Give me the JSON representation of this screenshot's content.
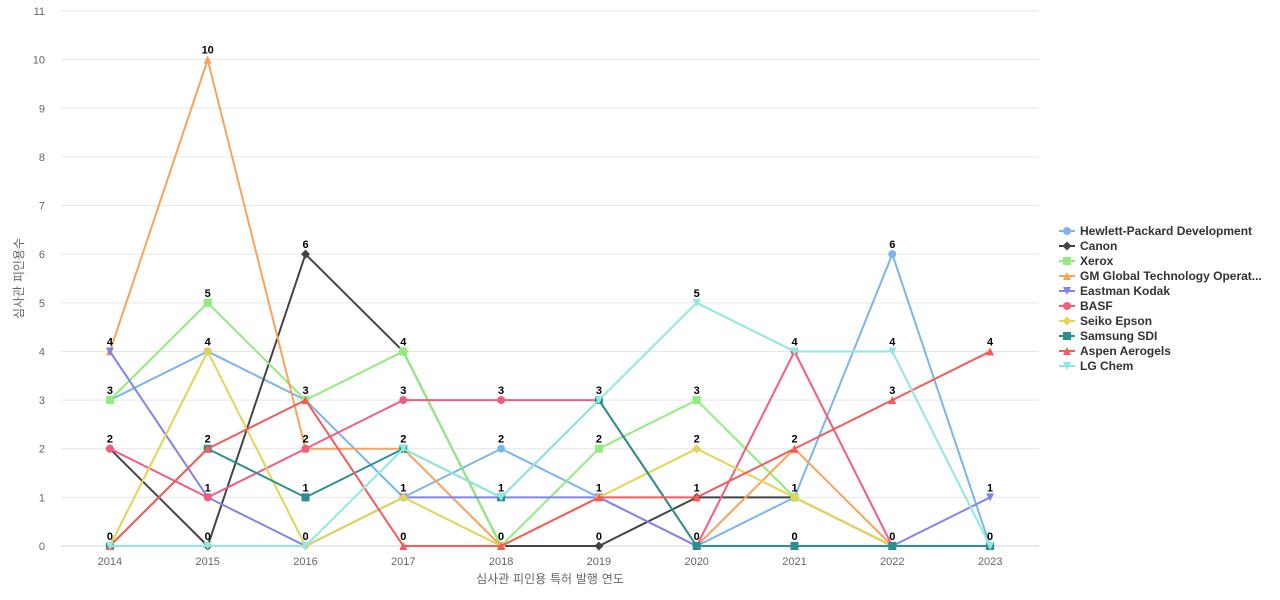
{
  "chart_data": {
    "type": "line",
    "xlabel": "심사관 피인용 특허 발행 연도",
    "ylabel": "심사관 피인용수",
    "x": [
      "2014",
      "2015",
      "2016",
      "2017",
      "2018",
      "2019",
      "2020",
      "2021",
      "2022",
      "2023"
    ],
    "ylim": [
      0,
      11
    ],
    "yticks": [
      "0",
      "1",
      "2",
      "3",
      "4",
      "5",
      "6",
      "7",
      "8",
      "9",
      "10",
      "11"
    ],
    "grid": true,
    "legend_position": "right",
    "series": [
      {
        "name": "Hewlett-Packard Development",
        "color": "#7cb5ec",
        "marker": "circle",
        "values": [
          3,
          4,
          3,
          1,
          2,
          1,
          0,
          1,
          6,
          0
        ]
      },
      {
        "name": "Canon",
        "color": "#434348",
        "marker": "diamond",
        "values": [
          2,
          0,
          6,
          4,
          0,
          0,
          1,
          1,
          0,
          0
        ]
      },
      {
        "name": "Xerox",
        "color": "#90ed7d",
        "marker": "square",
        "values": [
          3,
          5,
          3,
          4,
          0,
          2,
          3,
          1,
          0,
          0
        ]
      },
      {
        "name": "GM Global Technology Operat...",
        "color": "#f7a35c",
        "marker": "triangle",
        "values": [
          4,
          10,
          2,
          2,
          0,
          1,
          0,
          2,
          0,
          0
        ]
      },
      {
        "name": "Eastman Kodak",
        "color": "#8085e9",
        "marker": "triangle-down",
        "values": [
          4,
          1,
          0,
          1,
          1,
          1,
          0,
          0,
          0,
          1
        ]
      },
      {
        "name": "BASF",
        "color": "#f15c80",
        "marker": "circle",
        "values": [
          2,
          1,
          2,
          3,
          3,
          3,
          0,
          4,
          0,
          0
        ]
      },
      {
        "name": "Seiko Epson",
        "color": "#e4d354",
        "marker": "diamond",
        "values": [
          0,
          4,
          0,
          1,
          0,
          1,
          2,
          1,
          0,
          0
        ]
      },
      {
        "name": "Samsung SDI",
        "color": "#2b908f",
        "marker": "square",
        "values": [
          0,
          2,
          1,
          2,
          1,
          3,
          0,
          0,
          0,
          0
        ]
      },
      {
        "name": "Aspen Aerogels",
        "color": "#f45b5b",
        "marker": "triangle",
        "values": [
          0,
          2,
          3,
          0,
          0,
          1,
          1,
          2,
          3,
          4
        ]
      },
      {
        "name": "LG Chem",
        "color": "#91e8e1",
        "marker": "triangle-down",
        "values": [
          0,
          0,
          0,
          2,
          1,
          3,
          5,
          4,
          4,
          0
        ]
      }
    ],
    "data_labels": [
      {
        "x": "2014",
        "value": 4
      },
      {
        "x": "2014",
        "value": 3
      },
      {
        "x": "2014",
        "value": 2
      },
      {
        "x": "2014",
        "value": 0
      },
      {
        "x": "2015",
        "value": 10
      },
      {
        "x": "2015",
        "value": 5
      },
      {
        "x": "2015",
        "value": 4
      },
      {
        "x": "2015",
        "value": 2
      },
      {
        "x": "2015",
        "value": 1
      },
      {
        "x": "2015",
        "value": 0
      },
      {
        "x": "2016",
        "value": 6
      },
      {
        "x": "2016",
        "value": 3
      },
      {
        "x": "2016",
        "value": 2
      },
      {
        "x": "2016",
        "value": 1
      },
      {
        "x": "2016",
        "value": 0
      },
      {
        "x": "2017",
        "value": 4
      },
      {
        "x": "2017",
        "value": 3
      },
      {
        "x": "2017",
        "value": 2
      },
      {
        "x": "2017",
        "value": 1
      },
      {
        "x": "2017",
        "value": 0
      },
      {
        "x": "2018",
        "value": 3
      },
      {
        "x": "2018",
        "value": 2
      },
      {
        "x": "2018",
        "value": 1
      },
      {
        "x": "2018",
        "value": 0
      },
      {
        "x": "2019",
        "value": 3
      },
      {
        "x": "2019",
        "value": 2
      },
      {
        "x": "2019",
        "value": 1
      },
      {
        "x": "2019",
        "value": 0
      },
      {
        "x": "2020",
        "value": 5
      },
      {
        "x": "2020",
        "value": 3
      },
      {
        "x": "2020",
        "value": 2
      },
      {
        "x": "2020",
        "value": 1
      },
      {
        "x": "2020",
        "value": 0
      },
      {
        "x": "2021",
        "value": 4
      },
      {
        "x": "2021",
        "value": 2
      },
      {
        "x": "2021",
        "value": 1
      },
      {
        "x": "2021",
        "value": 0
      },
      {
        "x": "2022",
        "value": 6
      },
      {
        "x": "2022",
        "value": 4
      },
      {
        "x": "2022",
        "value": 3
      },
      {
        "x": "2022",
        "value": 0
      },
      {
        "x": "2023",
        "value": 4
      },
      {
        "x": "2023",
        "value": 1
      },
      {
        "x": "2023",
        "value": 0
      }
    ]
  }
}
